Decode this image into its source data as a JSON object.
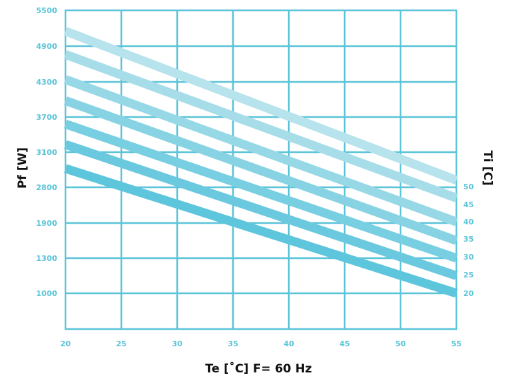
{
  "chart_data": {
    "type": "line",
    "xlabel": "Te [˚C] F= 60 Hz",
    "ylabel": "Pf [W]",
    "y2label": "Ti [C]",
    "x_ticks": [
      "20",
      "25",
      "30",
      "35",
      "40",
      "45",
      "50",
      "55"
    ],
    "y_ticks": [
      "5500",
      "4900",
      "4300",
      "3700",
      "3100",
      "2800",
      "1900",
      "1300",
      "1000"
    ],
    "xlim": [
      20,
      55
    ],
    "grid": true,
    "colors": {
      "grid": "#5bc4d8",
      "tick_text": "#5bc4d8",
      "series": [
        "#5ec6dc",
        "#6ac9de",
        "#78cfe1",
        "#88d3e3",
        "#97d8e6",
        "#a7dde9",
        "#b7e3ec"
      ]
    },
    "series": [
      {
        "name": "20",
        "x": [
          20,
          55
        ],
        "y": [
          2960,
          1000
        ]
      },
      {
        "name": "25",
        "x": [
          20,
          55
        ],
        "y": [
          3230,
          1150
        ]
      },
      {
        "name": "30",
        "x": [
          20,
          55
        ],
        "y": [
          3580,
          1300
        ]
      },
      {
        "name": "35",
        "x": [
          20,
          55
        ],
        "y": [
          3980,
          1600
        ]
      },
      {
        "name": "40",
        "x": [
          20,
          55
        ],
        "y": [
          4340,
          1930
        ]
      },
      {
        "name": "45",
        "x": [
          20,
          55
        ],
        "y": [
          4760,
          2530
        ]
      },
      {
        "name": "50",
        "x": [
          20,
          55
        ],
        "y": [
          5150,
          2860
        ]
      }
    ]
  }
}
